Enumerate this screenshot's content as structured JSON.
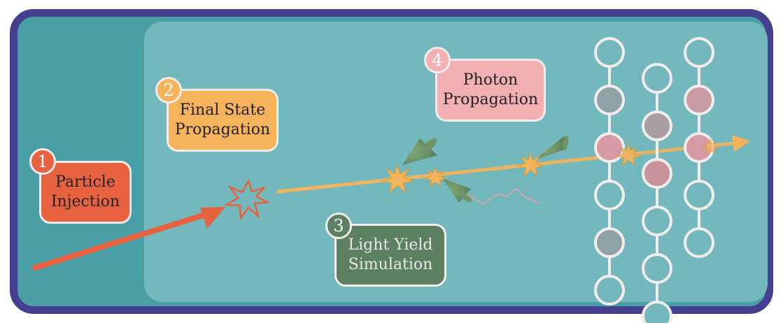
{
  "colors": {
    "outer_border": "#453f8f",
    "outer_fill": "#4a9fa6",
    "inner_fill": "#73b8bd",
    "particle_injection": "#e8623f",
    "final_state": "#f7b35c",
    "light_yield": "#5d8060",
    "photon_propagation": "#f3b0b2",
    "track": "#f4b45a",
    "sensor_ring": "#f2ecec"
  },
  "steps": [
    {
      "number": "1",
      "label": "Particle\nInjection",
      "color": "#e8623f",
      "text_color": "#222222"
    },
    {
      "number": "2",
      "label": "Final State\nPropagation",
      "color": "#f7b35c",
      "text_color": "#222222"
    },
    {
      "number": "3",
      "label": "Light Yield\nSimulation",
      "color": "#5d8060",
      "text_color": "#e8e8e8"
    },
    {
      "number": "4",
      "label": "Photon\nPropagation",
      "color": "#f3b0b2",
      "text_color": "#222222"
    }
  ],
  "sensor_strings": [
    {
      "states": [
        "empty",
        "hit",
        "hit",
        "empty",
        "hit",
        "empty"
      ]
    },
    {
      "states": [
        "empty",
        "hit",
        "hit",
        "empty",
        "empty",
        "empty"
      ]
    },
    {
      "states": [
        "empty",
        "hit",
        "hit",
        "empty",
        "empty"
      ]
    }
  ]
}
